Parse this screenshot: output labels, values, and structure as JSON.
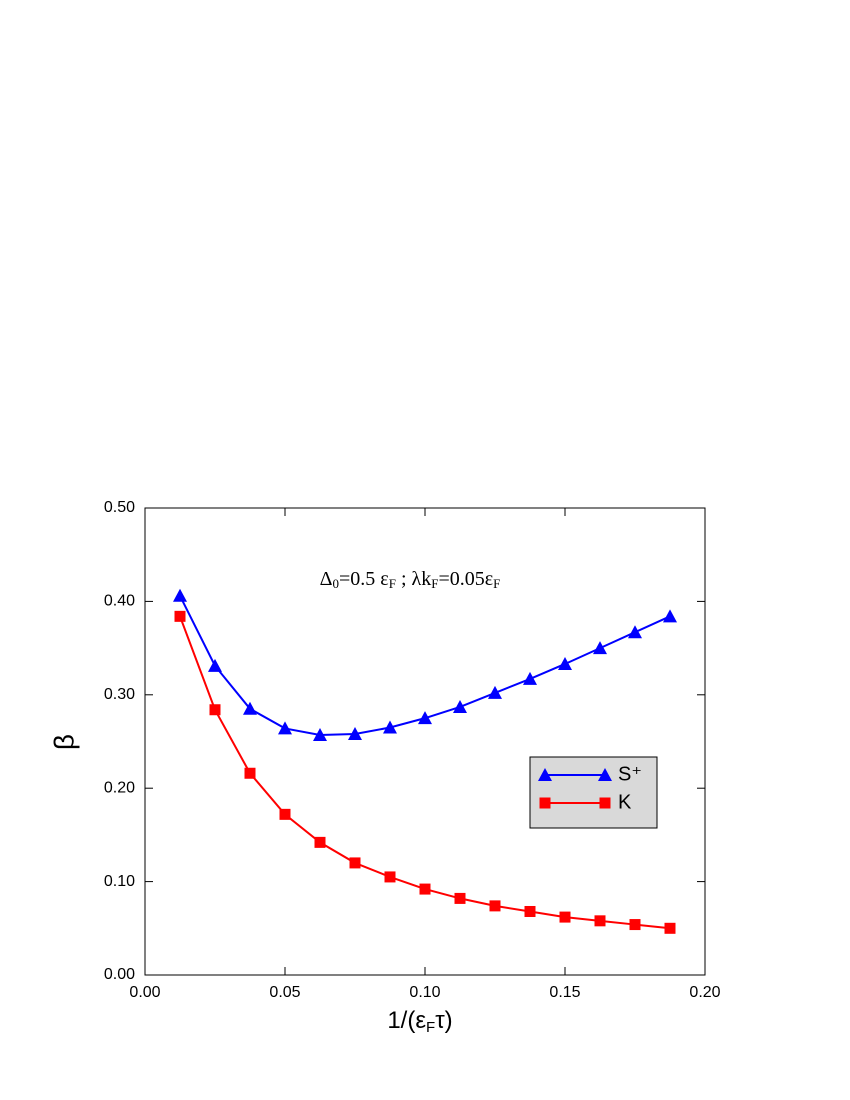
{
  "chart_data": {
    "type": "line",
    "annotation": [
      "Δ",
      "0",
      "=0.5 ε",
      "F",
      " ;  λk",
      "F",
      "=0.05ε",
      "F"
    ],
    "xlabel": [
      "1/(ε",
      "F",
      "τ)"
    ],
    "ylabel": "β",
    "x": [
      0.0125,
      0.025,
      0.0375,
      0.05,
      0.0625,
      0.075,
      0.0875,
      0.1,
      0.1125,
      0.125,
      0.1375,
      0.15,
      0.1625,
      0.175,
      0.1875
    ],
    "series": [
      {
        "name": "S⁺",
        "color": "#0000ff",
        "marker": "triangle",
        "values": [
          0.406,
          0.331,
          0.285,
          0.264,
          0.257,
          0.258,
          0.265,
          0.275,
          0.287,
          0.302,
          0.317,
          0.333,
          0.35,
          0.367,
          0.384
        ]
      },
      {
        "name": "K",
        "color": "#ff0000",
        "marker": "square",
        "values": [
          0.384,
          0.284,
          0.216,
          0.172,
          0.142,
          0.12,
          0.105,
          0.092,
          0.082,
          0.074,
          0.068,
          0.062,
          0.058,
          0.054,
          0.05
        ]
      }
    ],
    "xlim": [
      0,
      0.2
    ],
    "ylim": [
      0,
      0.5
    ],
    "xticks": [
      {
        "value": 0,
        "label": "0.00"
      },
      {
        "value": 0.05,
        "label": "0.05"
      },
      {
        "value": 0.1,
        "label": "0.10"
      },
      {
        "value": 0.15,
        "label": "0.15"
      },
      {
        "value": 0.2,
        "label": "0.20"
      }
    ],
    "yticks": [
      {
        "value": 0,
        "label": "0.00"
      },
      {
        "value": 0.1,
        "label": "0.10"
      },
      {
        "value": 0.2,
        "label": "0.20"
      },
      {
        "value": 0.3,
        "label": "0.30"
      },
      {
        "value": 0.4,
        "label": "0.40"
      },
      {
        "value": 0.5,
        "label": "0.50"
      }
    ],
    "legend": "right"
  }
}
